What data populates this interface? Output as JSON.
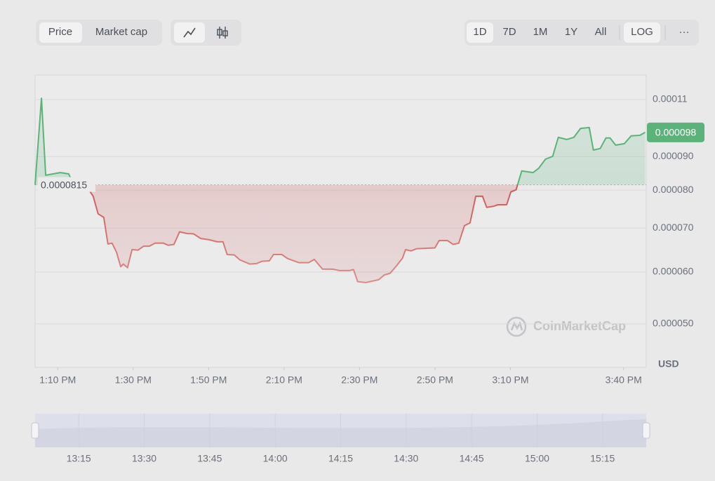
{
  "tabs": [
    "Price",
    "Market cap"
  ],
  "ranges": [
    "1D",
    "7D",
    "1M",
    "1Y",
    "All"
  ],
  "log_button": "LOG",
  "more_button": "···",
  "chart_data": {
    "type": "line",
    "log_scale": true,
    "grid": true,
    "watermark": "CoinMarketCap",
    "currency": "USD",
    "baseline": 8.15e-05,
    "last_value": 9.8e-05,
    "colors": {
      "up": "#5cb37a",
      "down": "#cf5b57"
    },
    "x": [
      784.0,
      785.7,
      786.8,
      790.7,
      792.9,
      794.0,
      797.9,
      799.4,
      800.7,
      802.2,
      803.3,
      804.4,
      805.6,
      806.7,
      807.4,
      808.5,
      809.7,
      811.3,
      812.8,
      814.3,
      815.8,
      818.0,
      819.3,
      820.8,
      822.3,
      824.2,
      826.0,
      827.9,
      830.1,
      832.3,
      833.8,
      834.9,
      836.8,
      838.3,
      840.9,
      842.7,
      844.2,
      846.1,
      847.2,
      849.4,
      850.9,
      853.9,
      856.5,
      858.0,
      860.2,
      862.8,
      864.7,
      867.3,
      868.4,
      869.5,
      871.7,
      875.1,
      876.6,
      878.1,
      879.9,
      881.4,
      882.2,
      883.6,
      885.1,
      890.0,
      891.1,
      893.3,
      894.8,
      896.3,
      897.8,
      899.3,
      900.8,
      902.6,
      903.7,
      905.6,
      906.7,
      909.0,
      910.1,
      911.5,
      913.0,
      916.0,
      917.5,
      919.3,
      921.2,
      922.7,
      924.9,
      926.8,
      928.6,
      930.9,
      932.0,
      933.8,
      935.3,
      936.4,
      937.9,
      940.2,
      942.0,
      944.3,
      945.7
    ],
    "values": [
      8.15e-05,
      0.0001105,
      8.43e-05,
      8.51e-05,
      8.47e-05,
      8.19e-05,
      8.07e-05,
      7.83e-05,
      7.36e-05,
      7.27e-05,
      6.62e-05,
      6.64e-05,
      6.43e-05,
      6.11e-05,
      6.17e-05,
      6.09e-05,
      6.49e-05,
      6.48e-05,
      6.57e-05,
      6.57e-05,
      6.64e-05,
      6.64e-05,
      6.59e-05,
      6.61e-05,
      6.91e-05,
      6.87e-05,
      6.86e-05,
      6.75e-05,
      6.72e-05,
      6.67e-05,
      6.67e-05,
      6.38e-05,
      6.37e-05,
      6.26e-05,
      6.17e-05,
      6.18e-05,
      6.23e-05,
      6.24e-05,
      6.38e-05,
      6.38e-05,
      6.29e-05,
      6.2e-05,
      6.2e-05,
      6.27e-05,
      6.06e-05,
      6.06e-05,
      6.03e-05,
      6.03e-05,
      6.05e-05,
      5.8e-05,
      5.78e-05,
      5.84e-05,
      5.94e-05,
      5.97e-05,
      6.14e-05,
      6.3e-05,
      6.49e-05,
      6.46e-05,
      6.51e-05,
      6.53e-05,
      6.7e-05,
      6.7e-05,
      6.61e-05,
      6.64e-05,
      7.06e-05,
      7.13e-05,
      7.83e-05,
      7.83e-05,
      7.53e-05,
      7.56e-05,
      7.6e-05,
      7.6e-05,
      7.95e-05,
      8.01e-05,
      8.56e-05,
      8.51e-05,
      8.64e-05,
      8.92e-05,
      9.01e-05,
      9.63e-05,
      9.56e-05,
      9.63e-05,
      9.94e-05,
      9.97e-05,
      9.21e-05,
      9.26e-05,
      9.61e-05,
      9.61e-05,
      9.37e-05,
      9.42e-05,
      9.68e-05,
      9.7e-05,
      9.8e-05
    ],
    "xlim": [
      784,
      946
    ],
    "xticks": [
      {
        "value": 790,
        "label": "1:10 PM"
      },
      {
        "value": 810,
        "label": "1:30 PM"
      },
      {
        "value": 830,
        "label": "1:50 PM"
      },
      {
        "value": 850,
        "label": "2:10 PM"
      },
      {
        "value": 870,
        "label": "2:30 PM"
      },
      {
        "value": 890,
        "label": "2:50 PM"
      },
      {
        "value": 910,
        "label": "3:10 PM"
      },
      {
        "value": 940,
        "label": "3:40 PM"
      }
    ],
    "ylim": [
      4.29e-05,
      0.0001199
    ],
    "yticks": [
      0.00011,
      {
        "value": 9e-05,
        "label": "0.000090"
      },
      {
        "value": 8e-05,
        "label": "0.000080"
      },
      {
        "value": 7e-05,
        "label": "0.000070"
      },
      {
        "value": 6e-05,
        "label": "0.000060"
      },
      {
        "value": 5e-05,
        "label": "0.000050"
      }
    ],
    "navigator": {
      "xlim": [
        785,
        925
      ],
      "xticks": [
        {
          "value": 795,
          "label": "13:15"
        },
        {
          "value": 810,
          "label": "13:30"
        },
        {
          "value": 825,
          "label": "13:45"
        },
        {
          "value": 840,
          "label": "14:00"
        },
        {
          "value": 855,
          "label": "14:15"
        },
        {
          "value": 870,
          "label": "14:30"
        },
        {
          "value": 885,
          "label": "14:45"
        },
        {
          "value": 900,
          "label": "15:00"
        },
        {
          "value": 915,
          "label": "15:15"
        }
      ]
    }
  }
}
